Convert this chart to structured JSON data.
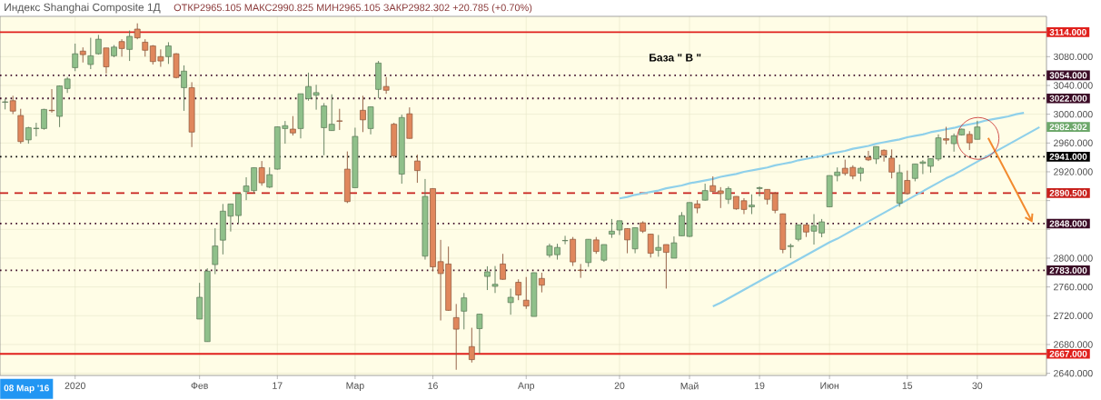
{
  "chart_data": {
    "type": "candlestick",
    "title": "Индекс Shanghai Composite 1Д",
    "subtitle": "ОТКР2965.105 МАКС2990.825 МИН2965.105 ЗАКР2982.302 +20.785 (+0.70%)",
    "annotations": [
      "База \" В \"",
      "08 Мар '16",
      "2982.302"
    ],
    "categories": [
      null,
      null,
      null,
      null,
      null,
      null,
      null,
      null,
      null,
      "2020",
      null,
      null,
      null,
      null,
      null,
      null,
      null,
      null,
      null,
      null,
      null,
      null,
      null,
      null,
      null,
      "Фев",
      null,
      null,
      null,
      null,
      null,
      null,
      null,
      null,
      null,
      "17",
      null,
      null,
      null,
      null,
      null,
      null,
      null,
      null,
      null,
      "Мар",
      null,
      null,
      null,
      null,
      null,
      null,
      null,
      null,
      null,
      "16",
      null,
      null,
      null,
      null,
      null,
      null,
      null,
      null,
      null,
      null,
      null,
      "Апр",
      null,
      null,
      null,
      null,
      null,
      null,
      null,
      null,
      null,
      null,
      null,
      "20",
      null,
      null,
      null,
      null,
      null,
      null,
      null,
      null,
      "Май",
      null,
      null,
      null,
      null,
      null,
      null,
      null,
      null,
      "19",
      null,
      null,
      null,
      null,
      null,
      null,
      null,
      null,
      "Июн",
      null,
      null,
      null,
      null,
      null,
      null,
      null,
      null,
      null,
      "15",
      null,
      null,
      null,
      null,
      null,
      null,
      null,
      null,
      "30",
      null,
      null,
      null,
      null,
      null,
      null,
      null,
      null
    ],
    "ylim": [
      2637,
      3136
    ],
    "yticks": [
      {
        "value": 2640,
        "label": "2640.000"
      },
      {
        "value": 2680,
        "label": "2680.000"
      },
      {
        "value": 2720,
        "label": "2720.000"
      },
      {
        "value": 2760,
        "label": "2760.000"
      },
      {
        "value": 2800,
        "label": "2800.000"
      },
      {
        "value": 2840,
        "label": null
      },
      {
        "value": 2880,
        "label": null
      },
      {
        "value": 2920,
        "label": "2920.000"
      },
      {
        "value": 2960,
        "label": "2960.000"
      },
      {
        "value": 3000,
        "label": "3000.000"
      },
      {
        "value": 3040,
        "label": "3040.000"
      },
      {
        "value": 3080,
        "label": "3080.000"
      }
    ],
    "grid": true,
    "ref_lines": [
      {
        "axis": "y",
        "value": 3114,
        "label": "3114.000",
        "color": "#e0201c",
        "line_style": "solid"
      },
      {
        "axis": "y",
        "value": 3054,
        "label": "3054.000",
        "color": "#3b0b26",
        "line_style": "dotted"
      },
      {
        "axis": "y",
        "value": 3022,
        "label": "3022.000",
        "color": "#3b0b26",
        "line_style": "dotted"
      },
      {
        "axis": "y",
        "value": 2941,
        "label": "2941.000",
        "color": "#000000",
        "line_style": "dotted"
      },
      {
        "axis": "y",
        "value": 2890.5,
        "label": "2890.500",
        "color": "#c8201c",
        "line_style": "dashed"
      },
      {
        "axis": "y",
        "value": 2848,
        "label": "2848.000",
        "color": "#3b0b26",
        "line_style": "dotted"
      },
      {
        "axis": "y",
        "value": 2783,
        "label": "2783.000",
        "color": "#3b0b26",
        "line_style": "dotted"
      },
      {
        "axis": "y",
        "value": 2667,
        "label": "2667.000",
        "color": "#e0201c",
        "line_style": "solid"
      }
    ],
    "ohlc": [
      [
        3016.7,
        3021.6,
        3006.7,
        3017.2
      ],
      [
        3018.8,
        3025.6,
        3000.2,
        3004.3
      ],
      [
        2998.2,
        3007.5,
        2959.1,
        2962.0
      ],
      [
        2964.4,
        2982.5,
        2959.1,
        2981.3
      ],
      [
        2980.1,
        2988.1,
        2969.2,
        2980.5
      ],
      [
        2980.1,
        3007.5,
        2978.5,
        3006.7
      ],
      [
        3005.5,
        3034.9,
        3002.2,
        3004.9
      ],
      [
        2997.0,
        3040.0,
        2982.1,
        3039.3
      ],
      [
        3035.7,
        3051.8,
        3029.6,
        3049.0
      ],
      [
        3064.7,
        3098.1,
        3059.9,
        3084.0
      ],
      [
        3087.7,
        3092.9,
        3071.9,
        3082.8
      ],
      [
        3069.1,
        3106.2,
        3062.7,
        3081.2
      ],
      [
        3084.0,
        3110.2,
        3082.8,
        3104.2
      ],
      [
        3092.1,
        3092.1,
        3056.6,
        3065.9
      ],
      [
        3081.2,
        3096.1,
        3079.2,
        3093.3
      ],
      [
        3101.0,
        3104.2,
        3080.0,
        3091.3
      ],
      [
        3090.1,
        3116.3,
        3074.0,
        3108.2
      ],
      [
        3118.3,
        3126.3,
        3104.2,
        3106.2
      ],
      [
        3100.1,
        3104.2,
        3080.0,
        3088.9
      ],
      [
        3094.9,
        3096.1,
        3069.1,
        3073.2
      ],
      [
        3080.0,
        3090.1,
        3065.9,
        3074.0
      ],
      [
        3080.0,
        3100.1,
        3069.9,
        3094.9
      ],
      [
        3084.0,
        3084.8,
        3049.8,
        3051.0
      ],
      [
        3036.9,
        3067.9,
        3004.7,
        3059.9
      ],
      [
        3036.9,
        3044.5,
        2954.3,
        2975.2
      ],
      [
        2715.4,
        2765.7,
        2715.4,
        2745.6
      ],
      [
        2684.0,
        2785.9,
        2684.0,
        2781.9
      ],
      [
        2791.1,
        2841.5,
        2777.8,
        2816.9
      ],
      [
        2825.0,
        2875.3,
        2805.2,
        2865.3
      ],
      [
        2858.4,
        2875.3,
        2837.0,
        2875.3
      ],
      [
        2859.2,
        2889.4,
        2848.7,
        2889.4
      ],
      [
        2892.6,
        2912.4,
        2880.6,
        2900.3
      ],
      [
        2893.9,
        2926.0,
        2889.8,
        2925.7
      ],
      [
        2925.7,
        2935.0,
        2900.7,
        2904.7
      ],
      [
        2898.7,
        2926.1,
        2897.5,
        2916.0
      ],
      [
        2923.7,
        2983.0,
        2923.0,
        2982.5
      ],
      [
        2980.1,
        2990.6,
        2959.1,
        2984.1
      ],
      [
        2979.3,
        2997.4,
        2970.4,
        2974.0
      ],
      [
        2980.1,
        3028.4,
        2966.4,
        3028.4
      ],
      [
        3021.6,
        3057.8,
        3018.8,
        3038.5
      ],
      [
        3026.4,
        3040.9,
        3006.3,
        3030.0
      ],
      [
        2981.3,
        3015.5,
        2943.0,
        3011.5
      ],
      [
        2977.3,
        3027.6,
        2977.0,
        2986.1
      ],
      [
        2990.8,
        3007.5,
        2978.1,
        2990.3
      ],
      [
        2923.7,
        2948.3,
        2876.5,
        2878.6
      ],
      [
        2897.9,
        2981.3,
        2897.9,
        2969.2
      ],
      [
        3005.5,
        3025.6,
        2975.2,
        2992.2
      ],
      [
        2980.1,
        3010.7,
        2972.0,
        3010.3
      ],
      [
        3034.5,
        3074.0,
        3022.4,
        3071.1
      ],
      [
        3038.5,
        3051.8,
        3028.4,
        3033.3
      ],
      [
        2986.1,
        2988.1,
        2939.0,
        2942.2
      ],
      [
        2916.8,
        2999.4,
        2903.5,
        2995.4
      ],
      [
        3000.6,
        3009.5,
        2966.0,
        2966.4
      ],
      [
        2935.0,
        2943.8,
        2904.7,
        2921.7
      ],
      [
        2802.8,
        2910.0,
        2798.0,
        2885.8
      ],
      [
        2896.7,
        2897.0,
        2781.9,
        2787.9
      ],
      [
        2795.2,
        2825.4,
        2713.4,
        2778.6
      ],
      [
        2791.9,
        2816.1,
        2727.0,
        2727.5
      ],
      [
        2717.4,
        2736.3,
        2644.9,
        2701.3
      ],
      [
        2726.3,
        2751.6,
        2701.0,
        2744.8
      ],
      [
        2677.1,
        2703.3,
        2655.0,
        2659.0
      ],
      [
        2702.1,
        2722.5,
        2667.0,
        2722.2
      ],
      [
        2774.6,
        2788.7,
        2755.7,
        2781.0
      ],
      [
        2760.9,
        2789.1,
        2751.6,
        2763.7
      ],
      [
        2791.9,
        2806.0,
        2770.0,
        2770.6
      ],
      [
        2738.3,
        2757.7,
        2721.4,
        2745.6
      ],
      [
        2766.5,
        2770.6,
        2741.6,
        2748.8
      ],
      [
        2741.6,
        2773.8,
        2729.5,
        2733.5
      ],
      [
        2719.0,
        2780.0,
        2719.0,
        2779.8
      ],
      [
        2771.8,
        2779.8,
        2752.4,
        2762.5
      ],
      [
        2804.0,
        2820.1,
        2800.8,
        2816.9
      ],
      [
        2804.8,
        2820.0,
        2798.0,
        2814.9
      ],
      [
        2824.2,
        2831.0,
        2819.3,
        2824.6
      ],
      [
        2826.2,
        2829.4,
        2789.1,
        2794.8
      ],
      [
        2783.4,
        2791.9,
        2772.6,
        2783.0
      ],
      [
        2793.9,
        2826.5,
        2787.9,
        2826.2
      ],
      [
        2825.4,
        2829.4,
        2806.0,
        2809.3
      ],
      [
        2797.2,
        2819.0,
        2794.8,
        2818.9
      ],
      [
        2833.4,
        2854.4,
        2828.2,
        2837.5
      ],
      [
        2839.1,
        2852.0,
        2832.2,
        2852.0
      ],
      [
        2841.1,
        2841.5,
        2806.8,
        2825.4
      ],
      [
        2812.9,
        2842.5,
        2806.8,
        2842.3
      ],
      [
        2849.1,
        2851.2,
        2835.0,
        2837.5
      ],
      [
        2833.4,
        2833.5,
        2800.8,
        2806.8
      ],
      [
        2810.9,
        2832.2,
        2802.0,
        2814.9
      ],
      [
        2818.9,
        2819.0,
        2757.7,
        2808.0
      ],
      [
        2800.0,
        2830.2,
        2800.0,
        2821.3
      ],
      [
        2831.0,
        2864.0,
        2831.0,
        2859.2
      ],
      [
        2830.2,
        2877.5,
        2829.4,
        2877.3
      ],
      [
        2875.3,
        2880.6,
        2862.4,
        2869.7
      ],
      [
        2880.6,
        2903.5,
        2880.0,
        2893.9
      ],
      [
        2900.7,
        2913.6,
        2892.0,
        2892.6
      ],
      [
        2893.5,
        2898.7,
        2869.7,
        2889.8
      ],
      [
        2881.8,
        2899.5,
        2875.3,
        2896.7
      ],
      [
        2885.8,
        2886.0,
        2867.3,
        2868.5
      ],
      [
        2879.8,
        2883.4,
        2861.2,
        2867.7
      ],
      [
        2871.3,
        2888.6,
        2861.2,
        2873.7
      ],
      [
        2896.7,
        2899.5,
        2885.8,
        2897.9
      ],
      [
        2895.5,
        2895.6,
        2874.5,
        2881.8
      ],
      [
        2889.8,
        2891.8,
        2862.4,
        2866.5
      ],
      [
        2861.6,
        2862.0,
        2806.8,
        2812.1
      ],
      [
        2816.1,
        2820.1,
        2800.0,
        2817.3
      ],
      [
        2826.2,
        2846.5,
        2823.4,
        2846.3
      ],
      [
        2846.3,
        2846.5,
        2829.4,
        2836.3
      ],
      [
        2837.5,
        2861.2,
        2818.9,
        2845.1
      ],
      [
        2835.0,
        2854.4,
        2829.0,
        2850.4
      ],
      [
        2871.3,
        2915.0,
        2871.0,
        2914.8
      ],
      [
        2914.8,
        2926.1,
        2906.8,
        2919.6
      ],
      [
        2924.9,
        2936.9,
        2914.8,
        2917.7
      ],
      [
        2926.1,
        2929.0,
        2909.6,
        2914.0
      ],
      [
        2918.1,
        2926.9,
        2906.8,
        2924.9
      ],
      [
        2940.2,
        2949.1,
        2935.0,
        2936.6
      ],
      [
        2937.8,
        2955.3,
        2930.9,
        2955.1
      ],
      [
        2949.9,
        2951.1,
        2934.2,
        2943.0
      ],
      [
        2939.0,
        2951.1,
        2910.8,
        2919.6
      ],
      [
        2876.5,
        2930.1,
        2871.3,
        2918.8
      ],
      [
        2908.0,
        2921.7,
        2888.6,
        2889.8
      ],
      [
        2910.8,
        2931.0,
        2906.8,
        2930.9
      ],
      [
        2931.7,
        2936.2,
        2916.8,
        2933.7
      ],
      [
        2927.7,
        2938.4,
        2918.8,
        2938.2
      ],
      [
        2937.8,
        2972.0,
        2935.0,
        2967.2
      ],
      [
        2966.0,
        2982.5,
        2958.3,
        2964.0
      ],
      [
        2959.1,
        2973.2,
        2948.0,
        2970.0
      ],
      [
        2971.2,
        2980.1,
        2970.4,
        2979.3
      ],
      [
        2972.0,
        2976.5,
        2950.3,
        2960.3
      ],
      [
        2965.105,
        2990.825,
        2965.105,
        2982.302
      ],
      null,
      null,
      null,
      null,
      null,
      null,
      null,
      null
    ],
    "colors": [
      "#8fc08a",
      "#e0875c",
      "#e0875c",
      "#8fc08a",
      "#8fc08a",
      "#8fc08a",
      "#e0875c",
      "#8fc08a",
      "#8fc08a",
      "#8fc08a",
      "#e0875c",
      "#8fc08a",
      "#8fc08a",
      "#e0875c",
      "#8fc08a",
      "#e0875c",
      "#8fc08a",
      "#e0875c",
      "#e0875c",
      "#e0875c",
      "#e0875c",
      "#8fc08a",
      "#e0875c",
      "#8fc08a",
      "#e0875c",
      "#8fc08a",
      "#8fc08a",
      "#8fc08a",
      "#8fc08a",
      "#8fc08a",
      "#8fc08a",
      "#8fc08a",
      "#8fc08a",
      "#e0875c",
      "#8fc08a",
      "#8fc08a",
      "#8fc08a",
      "#e0875c",
      "#8fc08a",
      "#8fc08a",
      "#8fc08a",
      "#8fc08a",
      "#8fc08a",
      "#e0875c",
      "#e0875c",
      "#8fc08a",
      "#e0875c",
      "#8fc08a",
      "#8fc08a",
      "#e0875c",
      "#e0875c",
      "#8fc08a",
      "#e0875c",
      "#e0875c",
      "#8fc08a",
      "#e0875c",
      "#e0875c",
      "#e0875c",
      "#e0875c",
      "#8fc08a",
      "#e0875c",
      "#8fc08a",
      "#8fc08a",
      "#8fc08a",
      "#e0875c",
      "#8fc08a",
      "#e0875c",
      "#e0875c",
      "#8fc08a",
      "#e0875c",
      "#8fc08a",
      "#8fc08a",
      "#8fc08a",
      "#e0875c",
      "#e0875c",
      "#8fc08a",
      "#e0875c",
      "#8fc08a",
      "#8fc08a",
      "#8fc08a",
      "#e0875c",
      "#8fc08a",
      "#e0875c",
      "#e0875c",
      "#8fc08a",
      "#e0875c",
      "#8fc08a",
      "#8fc08a",
      "#8fc08a",
      "#e0875c",
      "#8fc08a",
      "#e0875c",
      "#e0875c",
      "#8fc08a",
      "#e0875c",
      "#e0875c",
      "#8fc08a",
      "#8fc08a",
      "#e0875c",
      "#e0875c",
      "#e0875c",
      "#8fc08a",
      "#8fc08a",
      "#e0875c",
      "#8fc08a",
      "#8fc08a",
      "#8fc08a",
      "#8fc08a",
      "#e0875c",
      "#e0875c",
      "#8fc08a",
      "#e0875c",
      "#8fc08a",
      "#e0875c",
      "#e0875c",
      "#8fc08a",
      "#e0875c",
      "#8fc08a",
      "#8fc08a",
      "#8fc08a",
      "#8fc08a",
      "#e0875c",
      "#8fc08a",
      "#8fc08a",
      "#e0875c",
      "#8fc08a",
      null,
      null,
      null,
      null,
      null,
      null,
      null,
      null
    ],
    "series": [
      {
        "type": "line",
        "color": "#8fd0ea",
        "values": [
          null,
          null,
          null,
          null,
          null,
          null,
          null,
          null,
          null,
          null,
          null,
          null,
          null,
          null,
          null,
          null,
          null,
          null,
          null,
          null,
          null,
          null,
          null,
          null,
          null,
          null,
          null,
          null,
          null,
          null,
          null,
          null,
          null,
          null,
          null,
          null,
          null,
          null,
          null,
          null,
          null,
          null,
          null,
          null,
          null,
          null,
          null,
          null,
          null,
          null,
          null,
          null,
          null,
          null,
          null,
          null,
          null,
          null,
          null,
          null,
          null,
          null,
          null,
          null,
          null,
          null,
          null,
          null,
          null,
          null,
          null,
          null,
          null,
          null,
          null,
          null,
          null,
          null,
          null,
          2883,
          2885,
          2888,
          2890,
          2892,
          2894,
          2897,
          2899,
          2901,
          2904,
          2906,
          2908,
          2910,
          2913,
          2915,
          2917,
          2920,
          2922,
          2924,
          2926,
          2929,
          2931,
          2933,
          2936,
          2938,
          2940,
          2942,
          2945,
          2947,
          2949,
          2952,
          2954,
          2956,
          2959,
          2961,
          2963,
          2965,
          2968,
          2970,
          2972,
          2975,
          2977,
          2979,
          2981,
          2984,
          2986,
          2988,
          2991,
          2993,
          2995,
          2997,
          3000,
          3002,
          null,
          null
        ]
      },
      {
        "type": "line",
        "color": "#8fd0ea",
        "values": [
          null,
          null,
          null,
          null,
          null,
          null,
          null,
          null,
          null,
          null,
          null,
          null,
          null,
          null,
          null,
          null,
          null,
          null,
          null,
          null,
          null,
          null,
          null,
          null,
          null,
          null,
          null,
          null,
          null,
          null,
          null,
          null,
          null,
          null,
          null,
          null,
          null,
          null,
          null,
          null,
          null,
          null,
          null,
          null,
          null,
          null,
          null,
          null,
          null,
          null,
          null,
          null,
          null,
          null,
          null,
          null,
          null,
          null,
          null,
          null,
          null,
          null,
          null,
          null,
          null,
          null,
          null,
          null,
          null,
          null,
          null,
          null,
          null,
          null,
          null,
          null,
          null,
          null,
          null,
          null,
          null,
          null,
          null,
          null,
          null,
          null,
          null,
          null,
          null,
          null,
          null,
          2733,
          2738,
          2744,
          2750,
          2756,
          2762,
          2768,
          2774,
          2780,
          2786,
          2792,
          2798,
          2804,
          2810,
          2816,
          2822,
          2827,
          2833,
          2839,
          2845,
          2851,
          2857,
          2863,
          2869,
          2875,
          2881,
          2887,
          2893,
          2899,
          2905,
          2911,
          2916,
          2922,
          2928,
          2934,
          2940,
          2946,
          2952,
          2958,
          2964,
          2970,
          2976,
          2982
        ]
      }
    ]
  }
}
